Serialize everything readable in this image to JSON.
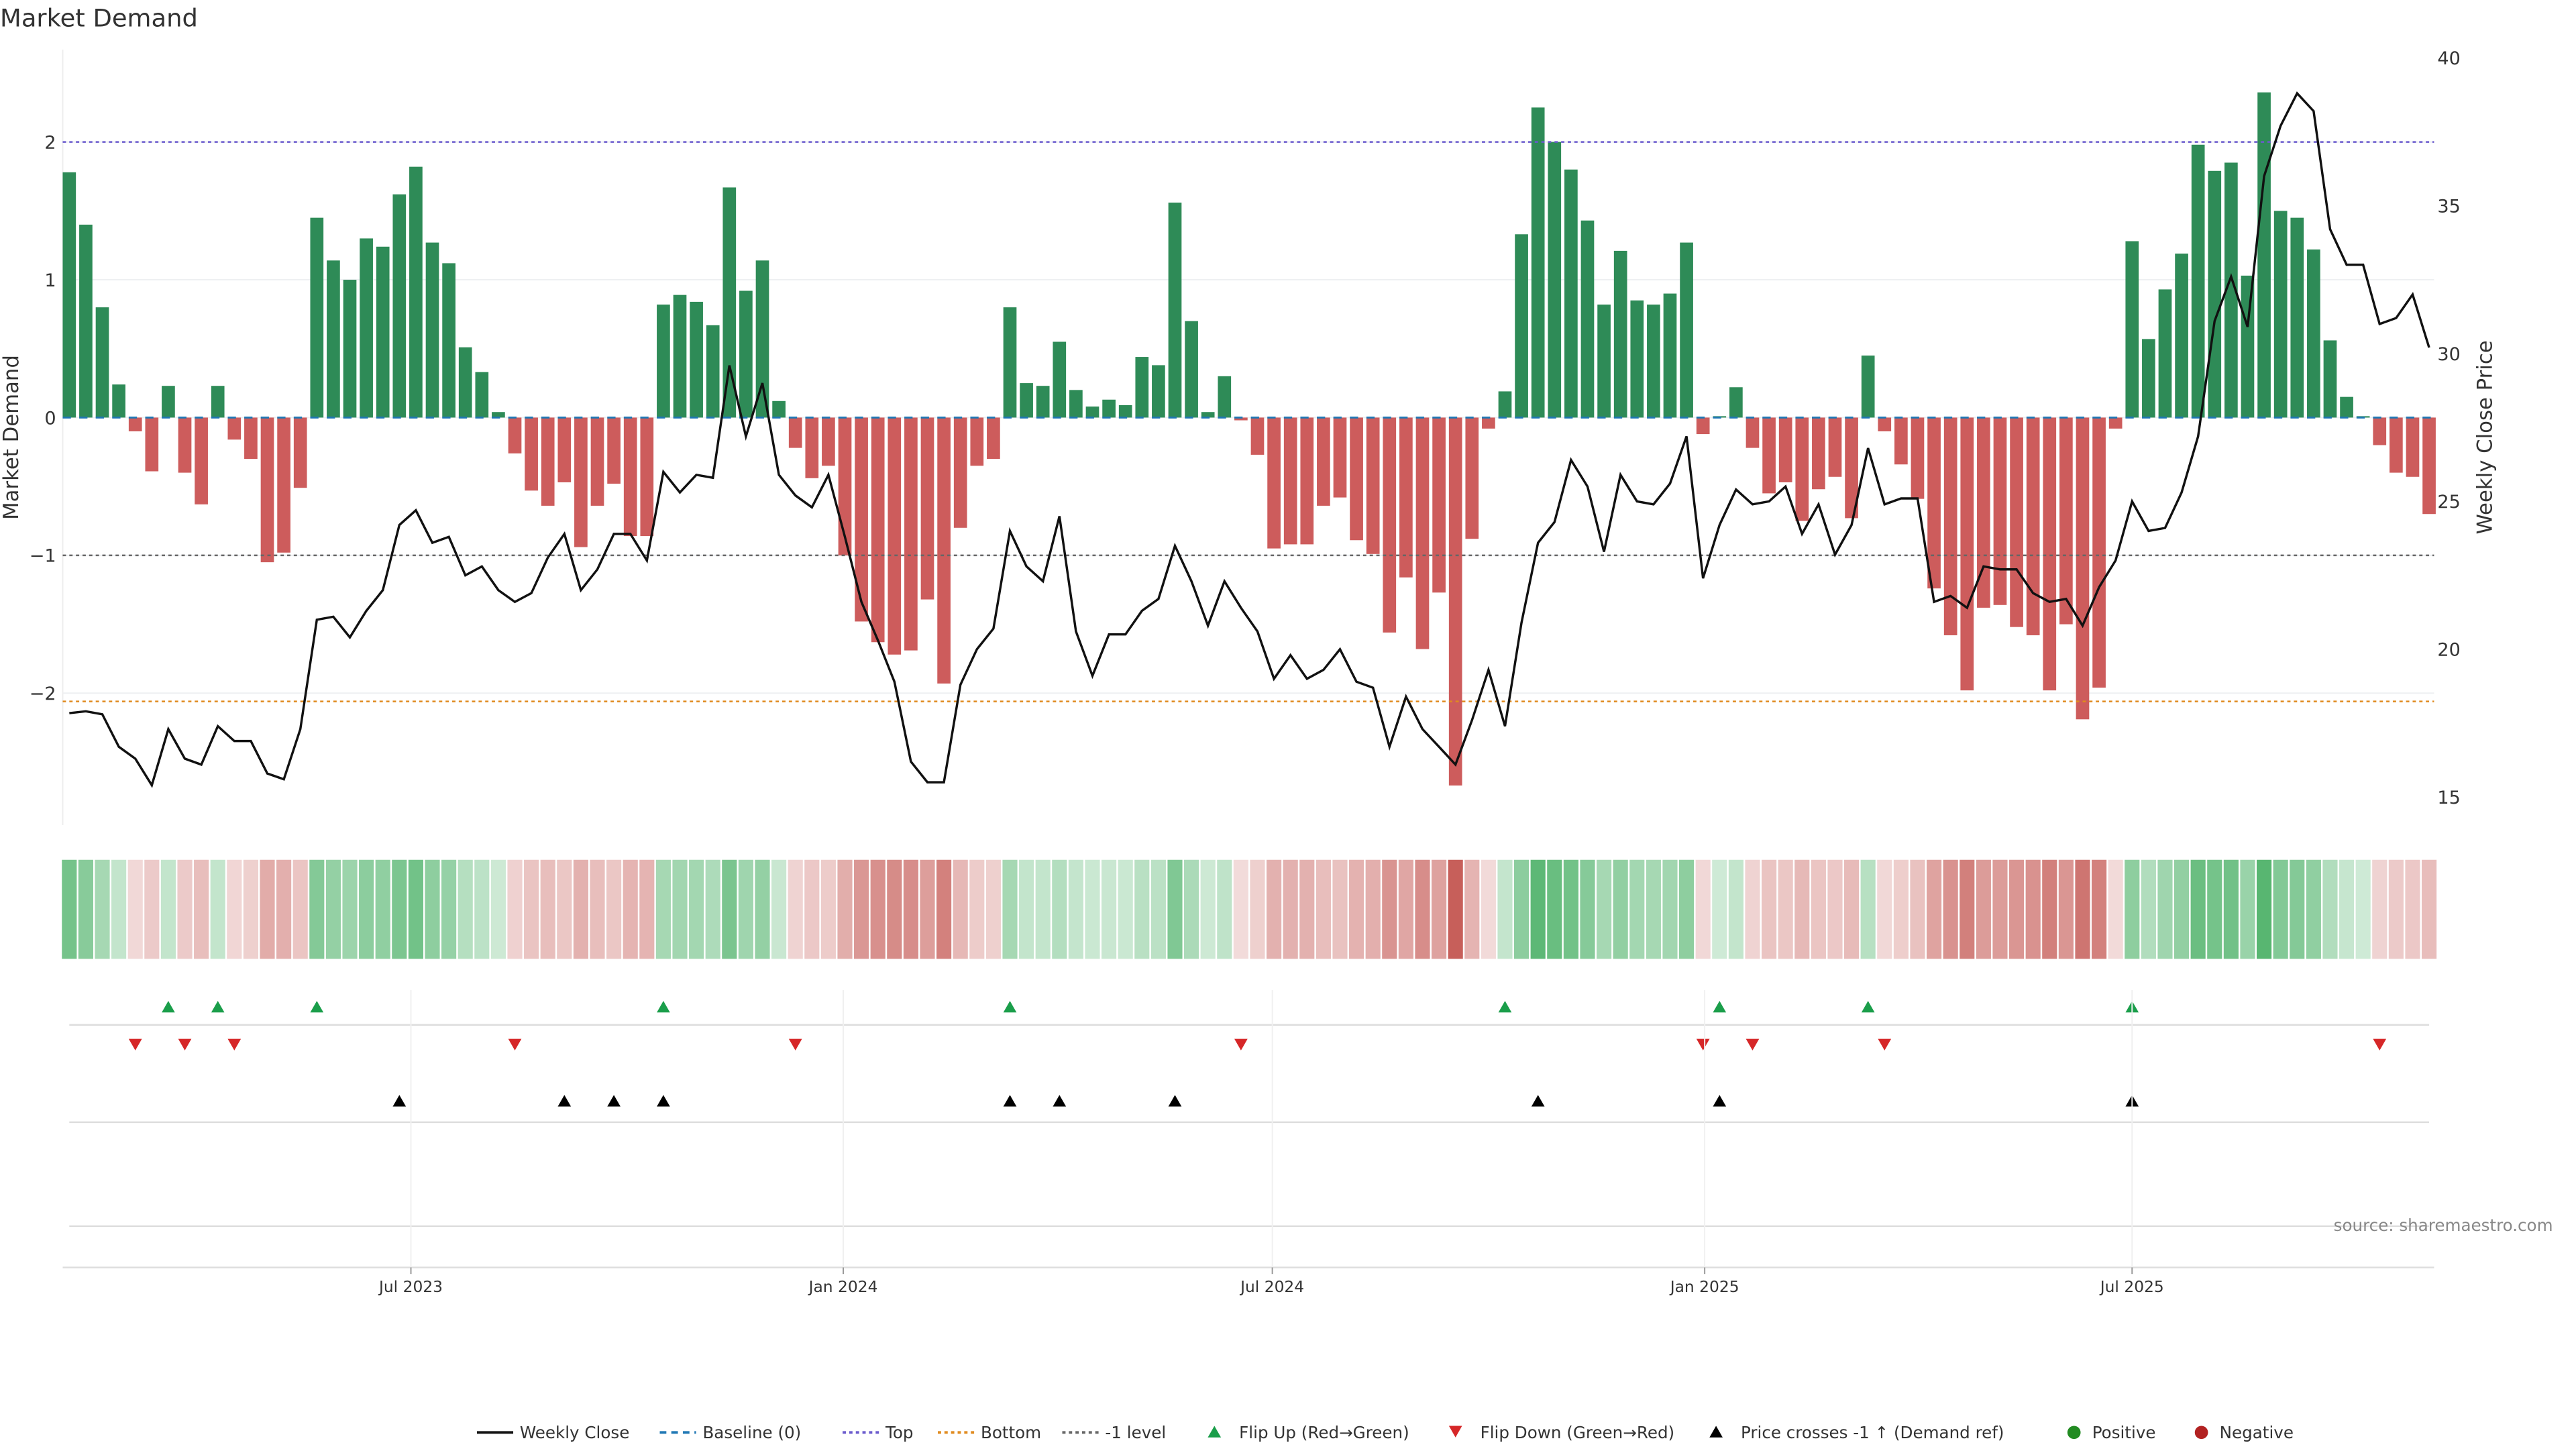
{
  "chart_data": {
    "type": "bar",
    "title": "Market Demand",
    "ylabel": "Market Demand",
    "y2label": "Weekly Close Price",
    "ylim": [
      -2.95,
      2.65
    ],
    "y2lim": [
      14.5,
      40.4
    ],
    "yticks": [
      2,
      1,
      0,
      -1,
      -2
    ],
    "ytick_labels": [
      "2",
      "1",
      "0",
      "−1",
      "−2"
    ],
    "y2ticks": [
      40,
      35,
      30,
      25,
      20,
      15
    ],
    "y2tick_labels": [
      "40",
      "35",
      "30",
      "25",
      "20",
      "15"
    ],
    "xticks": [
      {
        "label": "Jul 2023",
        "week": 21.7
      },
      {
        "label": "Jan 2024",
        "week": 47.9
      },
      {
        "label": "Jul 2024",
        "week": 73.9
      },
      {
        "label": "Jan 2025",
        "week": 100.1
      },
      {
        "label": "Jul 2025",
        "week": 126.0
      }
    ],
    "levels": {
      "top": 2.0,
      "bottom": -2.06,
      "minus_one": -1.0,
      "baseline": 0
    },
    "demand": [
      1.78,
      1.4,
      0.8,
      0.24,
      -0.1,
      -0.39,
      0.23,
      -0.4,
      -0.63,
      0.23,
      -0.16,
      -0.3,
      -1.05,
      -0.98,
      -0.51,
      1.45,
      1.14,
      1.0,
      1.3,
      1.24,
      1.62,
      1.82,
      1.27,
      1.12,
      0.51,
      0.33,
      0.04,
      -0.26,
      -0.53,
      -0.64,
      -0.47,
      -0.94,
      -0.64,
      -0.48,
      -0.86,
      -0.86,
      0.82,
      0.89,
      0.84,
      0.67,
      1.67,
      0.92,
      1.14,
      0.12,
      -0.22,
      -0.44,
      -0.35,
      -1.0,
      -1.48,
      -1.63,
      -1.72,
      -1.69,
      -1.32,
      -1.93,
      -0.8,
      -0.35,
      -0.3,
      0.8,
      0.25,
      0.23,
      0.55,
      0.2,
      0.08,
      0.13,
      0.09,
      0.44,
      0.38,
      1.56,
      0.7,
      0.04,
      0.3,
      -0.02,
      -0.27,
      -0.95,
      -0.92,
      -0.92,
      -0.64,
      -0.58,
      -0.89,
      -0.99,
      -1.56,
      -1.16,
      -1.68,
      -1.27,
      -2.67,
      -0.88,
      -0.08,
      0.19,
      1.33,
      2.25,
      2.0,
      1.8,
      1.43,
      0.82,
      1.21,
      0.85,
      0.82,
      0.9,
      1.27,
      -0.12,
      0.01,
      0.22,
      -0.22,
      -0.55,
      -0.47,
      -0.75,
      -0.52,
      -0.43,
      -0.73,
      0.45,
      -0.1,
      -0.34,
      -0.59,
      -1.24,
      -1.58,
      -1.98,
      -1.38,
      -1.36,
      -1.52,
      -1.58,
      -1.98,
      -1.5,
      -2.19,
      -1.96,
      -0.08,
      1.28,
      0.57,
      0.93,
      1.19,
      1.98,
      1.79,
      1.85,
      1.03,
      2.36,
      1.5,
      1.45,
      1.22,
      0.56,
      0.15,
      0.01,
      -0.2,
      -0.4,
      -0.43,
      -0.7
    ],
    "weekly_close": [
      17.84,
      17.9,
      17.8,
      16.7,
      16.3,
      15.4,
      17.3,
      16.3,
      16.1,
      17.4,
      16.9,
      16.9,
      15.8,
      15.6,
      17.3,
      21.0,
      21.1,
      20.4,
      21.3,
      22.0,
      24.2,
      24.7,
      23.6,
      23.8,
      22.5,
      22.8,
      22.0,
      21.6,
      21.9,
      23.1,
      23.9,
      22.0,
      22.7,
      23.9,
      23.9,
      23.0,
      26.0,
      25.3,
      25.9,
      25.8,
      29.6,
      27.2,
      29.0,
      25.9,
      25.2,
      24.8,
      25.9,
      23.8,
      21.6,
      20.3,
      18.9,
      16.2,
      15.5,
      15.5,
      18.8,
      20.0,
      20.7,
      24.0,
      22.8,
      22.3,
      24.5,
      20.6,
      19.1,
      20.5,
      20.5,
      21.3,
      21.7,
      23.5,
      22.3,
      20.8,
      22.3,
      21.4,
      20.6,
      19.0,
      19.8,
      19.0,
      19.3,
      20.0,
      18.9,
      18.7,
      16.7,
      18.4,
      17.3,
      16.7,
      16.1,
      17.6,
      19.3,
      17.4,
      20.9,
      23.6,
      24.3,
      26.4,
      25.5,
      23.3,
      25.9,
      25.0,
      24.9,
      25.6,
      27.2,
      22.4,
      24.2,
      25.4,
      24.9,
      25.0,
      25.5,
      23.9,
      24.9,
      23.2,
      24.2,
      26.8,
      24.9,
      25.1,
      25.1,
      21.6,
      21.8,
      21.4,
      22.8,
      22.7,
      22.7,
      21.9,
      21.6,
      21.7,
      20.8,
      22.1,
      23.0,
      25.0,
      24.0,
      24.1,
      25.3,
      27.2,
      31.1,
      32.6,
      30.9,
      36.0,
      37.7,
      38.8,
      38.2,
      34.2,
      33.0,
      33.0,
      31.0,
      31.2,
      32.0,
      30.2
    ],
    "flip_up_weeks": [
      7,
      10,
      16,
      37,
      58,
      88,
      101,
      110,
      126
    ],
    "flip_down_weeks": [
      5,
      8,
      11,
      28,
      45,
      72,
      100,
      103,
      111,
      141
    ],
    "price_cross_weeks": [
      21,
      31,
      34,
      37,
      58,
      61,
      68,
      90,
      101,
      126
    ],
    "colors": {
      "positive": "#2e8b57",
      "negative": "#cd5c5c",
      "line": "#111111",
      "top": "#6a5acd",
      "bottom": "#e08a1e",
      "minus_one": "#666666",
      "baseline": "#1f77b4",
      "flip_up": "#1a9e4a",
      "flip_down": "#d62728",
      "cross": "#000000",
      "legend_pos": "#228b22",
      "legend_neg": "#b22222"
    },
    "legend_position": "bottom-center",
    "legend": [
      "Weekly Close",
      "Baseline (0)",
      "Top",
      "Bottom",
      "-1 level",
      "Flip Up (Red→Green)",
      "Flip Down (Green→Red)",
      "Price crosses -1 ↑ (Demand ref)",
      "Positive",
      "Negative"
    ]
  },
  "source": "source: sharemaestro.com"
}
